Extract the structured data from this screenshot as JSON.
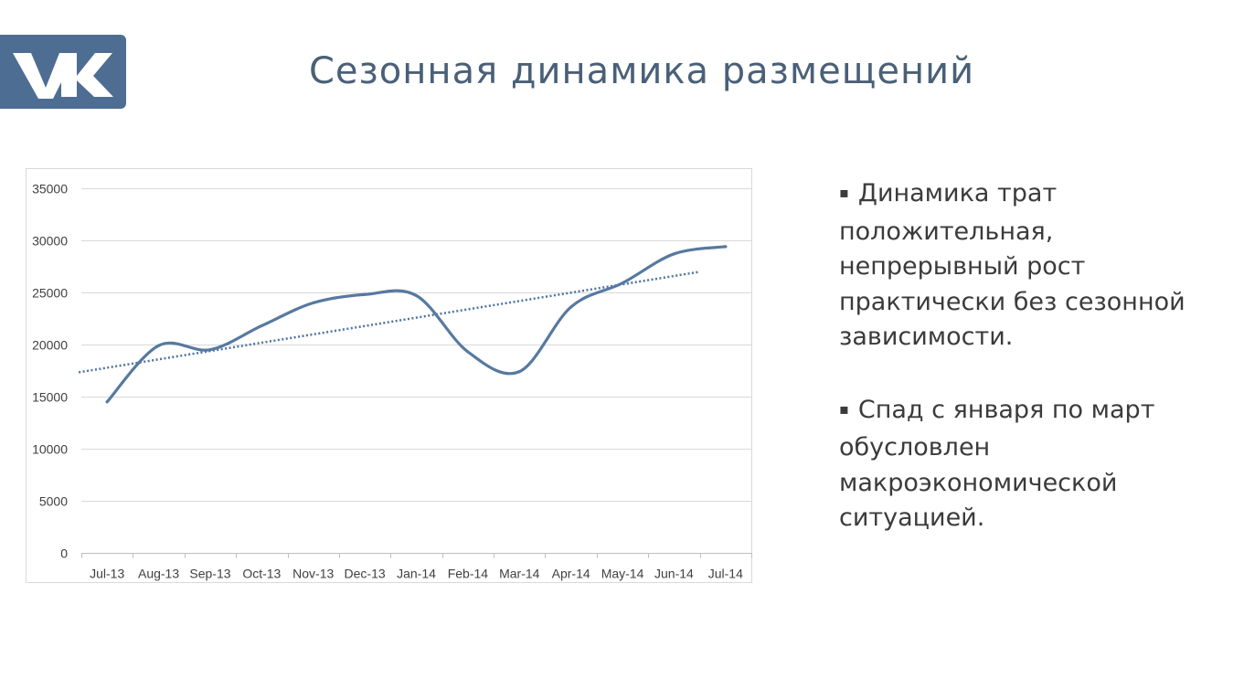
{
  "logo": {
    "text": "VK",
    "color": "#4d6d93"
  },
  "title": "Сезонная динамика размещений",
  "chart_data": {
    "type": "line",
    "categories": [
      "Jul-13",
      "Aug-13",
      "Sep-13",
      "Oct-13",
      "Nov-13",
      "Dec-13",
      "Jan-14",
      "Feb-14",
      "Mar-14",
      "Apr-14",
      "May-14",
      "Jun-14",
      "Jul-14"
    ],
    "series": [
      {
        "values": [
          14500,
          19900,
          19500,
          21800,
          24000,
          24800,
          24700,
          19300,
          17400,
          23600,
          25900,
          28700,
          29400
        ],
        "color": "#5779a0"
      }
    ],
    "trendline": {
      "type": "linear",
      "style": "dotted",
      "color": "#4d73a0"
    },
    "ylim": [
      0,
      35000
    ],
    "yticks": [
      0,
      5000,
      10000,
      15000,
      20000,
      25000,
      30000,
      35000
    ],
    "ytick_labels": [
      "0",
      "5000",
      "10000",
      "15000",
      "20000",
      "25000",
      "30000",
      "35000"
    ],
    "grid": true,
    "legend": "none",
    "title": "",
    "xlabel": "",
    "ylabel": ""
  },
  "bullets": [
    {
      "marker": "▪",
      "text": "Динамика трат положительная, непрерывный рост практически без сезонной зависимости."
    },
    {
      "marker": "▪",
      "text": "Спад с января по март обусловлен макроэкономической ситуацией."
    }
  ]
}
